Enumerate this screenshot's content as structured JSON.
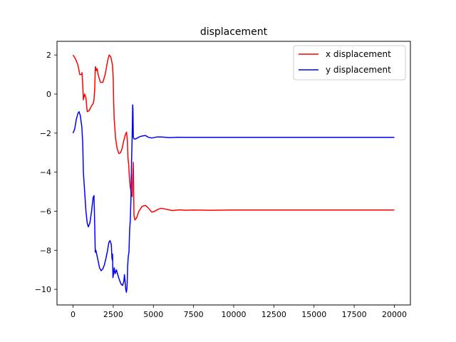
{
  "chart_data": {
    "type": "line",
    "title": "displacement",
    "xlabel": "",
    "ylabel": "",
    "xlim": [
      -1000,
      21000
    ],
    "ylim": [
      -10.8,
      2.7
    ],
    "xticks": [
      0,
      2500,
      5000,
      7500,
      10000,
      12500,
      15000,
      17500,
      20000
    ],
    "xtick_labels": [
      "0",
      "2500",
      "5000",
      "7500",
      "10000",
      "12500",
      "15000",
      "17500",
      "20000"
    ],
    "yticks": [
      2,
      0,
      -2,
      -4,
      -6,
      -8,
      -10
    ],
    "ytick_labels": [
      "2",
      "0",
      "−2",
      "−4",
      "−6",
      "−8",
      "−10"
    ],
    "grid": false,
    "legend_position": "upper right",
    "series": [
      {
        "name": "x displacement",
        "color": "#ff0000",
        "points": [
          [
            0,
            2.0
          ],
          [
            150,
            1.8
          ],
          [
            300,
            1.5
          ],
          [
            420,
            1.0
          ],
          [
            530,
            1.0
          ],
          [
            560,
            1.1
          ],
          [
            600,
            0.5
          ],
          [
            640,
            -0.3
          ],
          [
            720,
            0.0
          ],
          [
            800,
            -0.2
          ],
          [
            880,
            -0.9
          ],
          [
            1000,
            -0.85
          ],
          [
            1150,
            -0.6
          ],
          [
            1250,
            -0.5
          ],
          [
            1300,
            -0.3
          ],
          [
            1350,
            0.3
          ],
          [
            1380,
            1.3
          ],
          [
            1400,
            1.4
          ],
          [
            1450,
            1.2
          ],
          [
            1500,
            1.3
          ],
          [
            1560,
            1.0
          ],
          [
            1700,
            0.6
          ],
          [
            1850,
            0.6
          ],
          [
            2000,
            1.0
          ],
          [
            2150,
            1.7
          ],
          [
            2250,
            2.0
          ],
          [
            2350,
            1.9
          ],
          [
            2450,
            1.5
          ],
          [
            2500,
            0.8
          ],
          [
            2530,
            -0.5
          ],
          [
            2560,
            -1.3
          ],
          [
            2650,
            -2.3
          ],
          [
            2750,
            -2.8
          ],
          [
            2850,
            -3.05
          ],
          [
            2950,
            -3.0
          ],
          [
            3050,
            -2.8
          ],
          [
            3150,
            -2.4
          ],
          [
            3250,
            -2.1
          ],
          [
            3330,
            -1.95
          ],
          [
            3380,
            -2.4
          ],
          [
            3420,
            -3.3
          ],
          [
            3460,
            -3.6
          ],
          [
            3500,
            -4.2
          ],
          [
            3550,
            -4.7
          ],
          [
            3620,
            -5.1
          ],
          [
            3680,
            -5.25
          ],
          [
            3710,
            -4.2
          ],
          [
            3730,
            -4.0
          ],
          [
            3750,
            -3.5
          ],
          [
            3790,
            -6.2
          ],
          [
            3850,
            -6.45
          ],
          [
            3950,
            -6.35
          ],
          [
            4100,
            -6.0
          ],
          [
            4300,
            -5.75
          ],
          [
            4500,
            -5.7
          ],
          [
            4700,
            -5.85
          ],
          [
            4900,
            -6.05
          ],
          [
            5100,
            -6.0
          ],
          [
            5300,
            -5.9
          ],
          [
            5500,
            -5.85
          ],
          [
            5800,
            -5.9
          ],
          [
            6200,
            -5.97
          ],
          [
            6600,
            -5.93
          ],
          [
            7000,
            -5.95
          ],
          [
            7500,
            -5.94
          ],
          [
            8500,
            -5.95
          ],
          [
            10000,
            -5.94
          ],
          [
            12500,
            -5.94
          ],
          [
            15000,
            -5.94
          ],
          [
            17500,
            -5.94
          ],
          [
            20000,
            -5.94
          ]
        ]
      },
      {
        "name": "y displacement",
        "color": "#0000ff",
        "points": [
          [
            0,
            -2.0
          ],
          [
            100,
            -1.8
          ],
          [
            200,
            -1.3
          ],
          [
            300,
            -1.0
          ],
          [
            370,
            -0.9
          ],
          [
            450,
            -1.1
          ],
          [
            550,
            -1.7
          ],
          [
            600,
            -2.5
          ],
          [
            640,
            -4.0
          ],
          [
            700,
            -4.7
          ],
          [
            800,
            -6.0
          ],
          [
            880,
            -6.6
          ],
          [
            950,
            -6.8
          ],
          [
            1050,
            -6.6
          ],
          [
            1150,
            -6.0
          ],
          [
            1250,
            -5.3
          ],
          [
            1300,
            -5.2
          ],
          [
            1350,
            -6.8
          ],
          [
            1380,
            -8.1
          ],
          [
            1420,
            -8.0
          ],
          [
            1470,
            -8.2
          ],
          [
            1550,
            -8.5
          ],
          [
            1650,
            -8.9
          ],
          [
            1750,
            -9.05
          ],
          [
            1850,
            -8.95
          ],
          [
            1950,
            -8.75
          ],
          [
            2050,
            -8.4
          ],
          [
            2150,
            -8.0
          ],
          [
            2230,
            -7.6
          ],
          [
            2300,
            -7.5
          ],
          [
            2380,
            -7.7
          ],
          [
            2420,
            -8.4
          ],
          [
            2440,
            -8.5
          ],
          [
            2460,
            -8.2
          ],
          [
            2480,
            -9.4
          ],
          [
            2520,
            -9.2
          ],
          [
            2560,
            -8.9
          ],
          [
            2620,
            -9.2
          ],
          [
            2700,
            -9.0
          ],
          [
            2800,
            -9.3
          ],
          [
            2900,
            -9.55
          ],
          [
            3000,
            -9.75
          ],
          [
            3080,
            -9.8
          ],
          [
            3160,
            -9.6
          ],
          [
            3200,
            -9.25
          ],
          [
            3240,
            -9.6
          ],
          [
            3280,
            -10.0
          ],
          [
            3320,
            -10.15
          ],
          [
            3360,
            -9.9
          ],
          [
            3400,
            -8.8
          ],
          [
            3440,
            -8.3
          ],
          [
            3480,
            -8.1
          ],
          [
            3520,
            -7.0
          ],
          [
            3560,
            -6.5
          ],
          [
            3600,
            -5.5
          ],
          [
            3640,
            -3.5
          ],
          [
            3680,
            -2.2
          ],
          [
            3710,
            -0.55
          ],
          [
            3730,
            -0.8
          ],
          [
            3750,
            -2.2
          ],
          [
            3800,
            -2.3
          ],
          [
            3900,
            -2.3
          ],
          [
            4000,
            -2.25
          ],
          [
            4100,
            -2.2
          ],
          [
            4300,
            -2.15
          ],
          [
            4500,
            -2.12
          ],
          [
            4700,
            -2.22
          ],
          [
            4900,
            -2.25
          ],
          [
            5200,
            -2.2
          ],
          [
            5500,
            -2.2
          ],
          [
            6000,
            -2.23
          ],
          [
            6500,
            -2.21
          ],
          [
            7000,
            -2.22
          ],
          [
            8000,
            -2.22
          ],
          [
            10000,
            -2.22
          ],
          [
            12500,
            -2.22
          ],
          [
            15000,
            -2.22
          ],
          [
            17500,
            -2.22
          ],
          [
            20000,
            -2.22
          ]
        ]
      }
    ]
  }
}
